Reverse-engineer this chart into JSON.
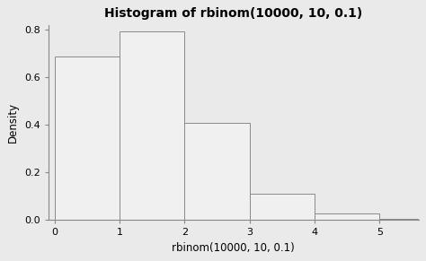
{
  "title": "Histogram of rbinom(10000, 10, 0.1)",
  "xlabel": "rbinom(10000, 10, 0.1)",
  "ylabel": "Density",
  "bar_lefts": [
    0,
    1,
    2,
    3,
    4,
    5
  ],
  "bar_heights": [
    0.687,
    0.791,
    0.408,
    0.109,
    0.026,
    0.005
  ],
  "bar_width": 1.0,
  "bar_facecolor": "#f0f0f0",
  "bar_edgecolor": "#8a8a8a",
  "background_color": "#eaeaea",
  "plot_bg_color": "#eaeaea",
  "ylim": [
    0.0,
    0.82
  ],
  "yticks": [
    0.0,
    0.2,
    0.4,
    0.6,
    0.8
  ],
  "xlim": [
    -0.1,
    5.6
  ],
  "xticks": [
    0,
    1,
    2,
    3,
    4,
    5
  ],
  "title_fontsize": 10,
  "axis_fontsize": 8.5,
  "tick_fontsize": 8
}
